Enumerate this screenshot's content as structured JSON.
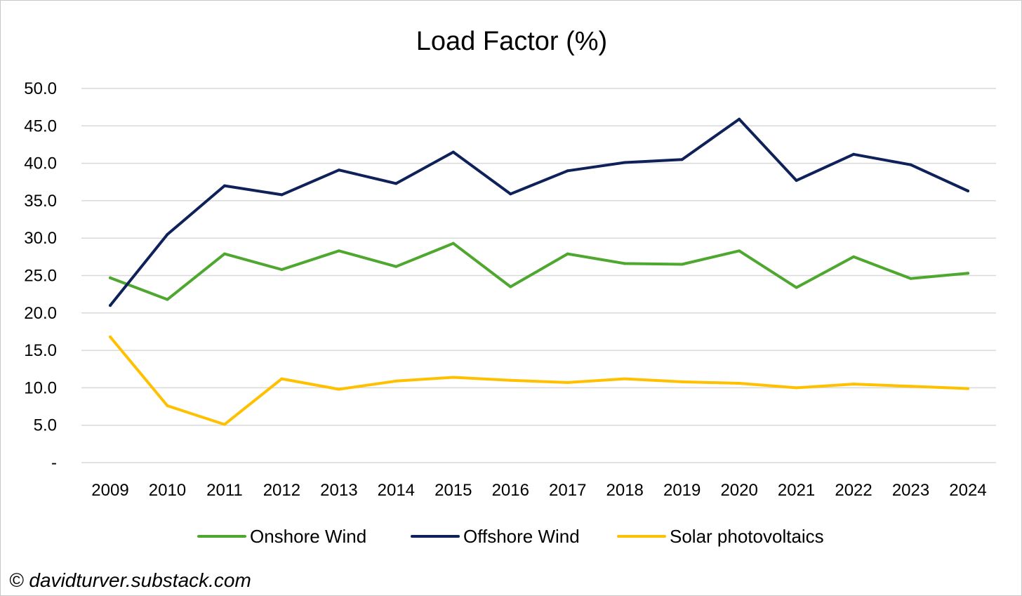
{
  "credit": "© davidturver.substack.com",
  "chart_data": {
    "type": "line",
    "title": "Load Factor (%)",
    "xlabel": "",
    "ylabel": "",
    "x": [
      "2009",
      "2010",
      "2011",
      "2012",
      "2013",
      "2014",
      "2015",
      "2016",
      "2017",
      "2018",
      "2019",
      "2020",
      "2021",
      "2022",
      "2023",
      "2024"
    ],
    "ylim": [
      0,
      50
    ],
    "yticks": [
      0,
      5,
      10,
      15,
      20,
      25,
      30,
      35,
      40,
      45,
      50
    ],
    "ytick_labels": [
      "-",
      "5.0",
      "10.0",
      "15.0",
      "20.0",
      "25.0",
      "30.0",
      "35.0",
      "40.0",
      "45.0",
      "50.0"
    ],
    "grid": true,
    "legend_position": "bottom",
    "series": [
      {
        "name": "Onshore Wind",
        "color": "#4ea72e",
        "values": [
          24.7,
          21.8,
          27.9,
          25.8,
          28.3,
          26.2,
          29.3,
          23.5,
          27.9,
          26.6,
          26.5,
          28.3,
          23.4,
          27.5,
          24.6,
          25.3
        ]
      },
      {
        "name": "Offshore Wind",
        "color": "#0e2159",
        "values": [
          21.0,
          30.5,
          37.0,
          35.8,
          39.1,
          37.3,
          41.5,
          35.9,
          39.0,
          40.1,
          40.5,
          45.9,
          37.7,
          41.2,
          39.8,
          36.3
        ]
      },
      {
        "name": "Solar photovoltaics",
        "color": "#ffc000",
        "values": [
          16.8,
          7.6,
          5.1,
          11.2,
          9.8,
          10.9,
          11.4,
          11.0,
          10.7,
          11.2,
          10.8,
          10.6,
          10.0,
          10.5,
          10.2,
          9.9
        ]
      }
    ]
  }
}
